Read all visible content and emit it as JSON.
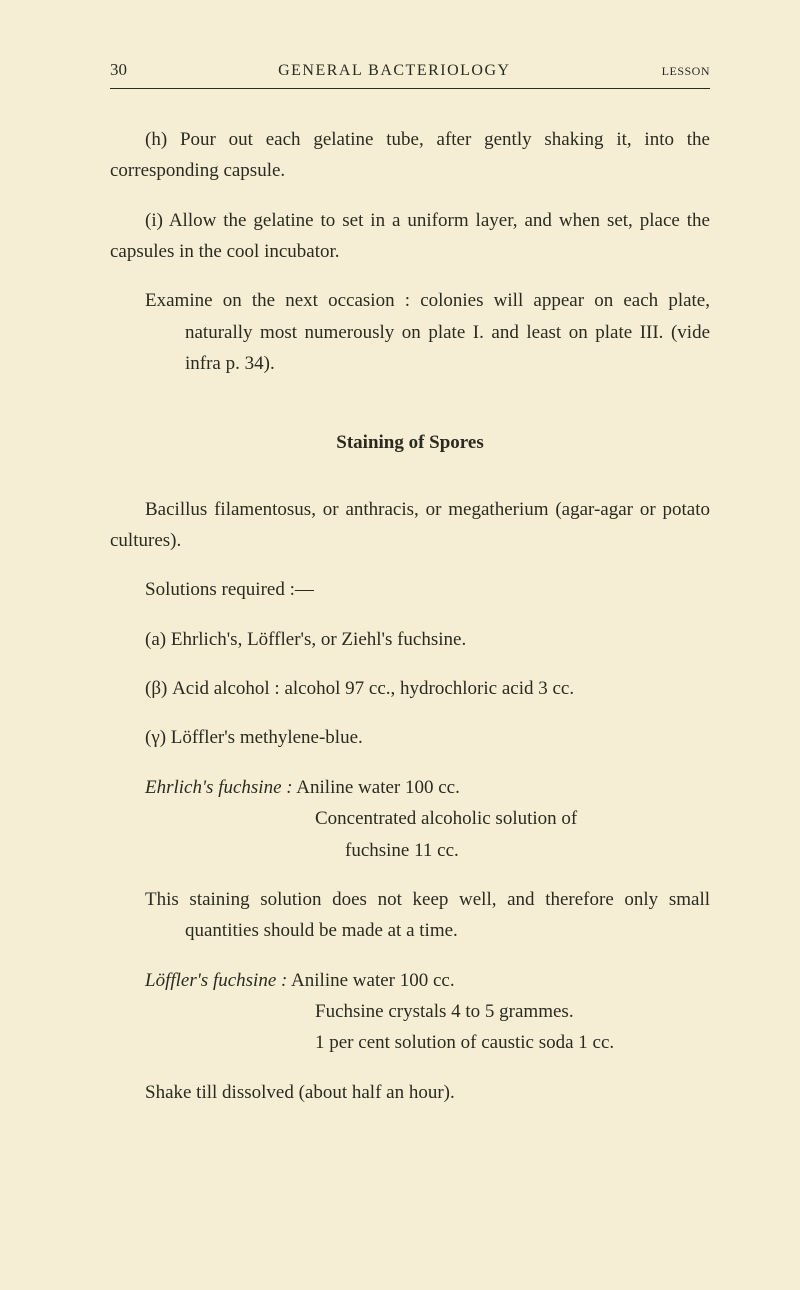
{
  "header": {
    "page_number": "30",
    "title": "GENERAL BACTERIOLOGY",
    "label": "LESSON"
  },
  "paragraphs": {
    "h": "(h) Pour out each gelatine tube, after gently shaking it, into the corresponding capsule.",
    "i": "(i) Allow the gelatine to set in a uniform layer, and when set, place the capsules in the cool incubator.",
    "examine": "Examine on the next occasion : colonies will appear on each plate, naturally most numerously on plate I. and least on plate III. (vide infra p. 34)."
  },
  "section_heading": "Staining of Spores",
  "spores": {
    "intro": "Bacillus filamentosus, or anthracis, or megatherium (agar-agar or potato cultures).",
    "solutions_label": "Solutions required :—",
    "alpha": "(a) Ehrlich's, Löffler's, or Ziehl's fuchsine.",
    "beta": "(β) Acid alcohol : alcohol 97 cc., hydrochloric acid 3 cc.",
    "gamma": "(γ) Löffler's methylene-blue."
  },
  "ehrlich": {
    "label": "Ehrlich's fuchsine :",
    "line1_rest": " Aniline water 100 cc.",
    "line2": "Concentrated alcoholic solution of",
    "line3": "fuchsine 11 cc."
  },
  "staining_note": "This staining solution does not keep well, and therefore only small quantities should be made at a time.",
  "loffler": {
    "label": "Löffler's fuchsine :",
    "line1_rest": " Aniline water 100 cc.",
    "line2": "Fuchsine crystals 4 to 5 grammes.",
    "line3": "1 per cent solution of caustic soda 1 cc."
  },
  "shake": "Shake till dissolved (about half an hour).",
  "styles": {
    "background_color": "#f5eed5",
    "text_color": "#2a2a1f",
    "body_fontsize": 19,
    "header_fontsize": 16
  }
}
